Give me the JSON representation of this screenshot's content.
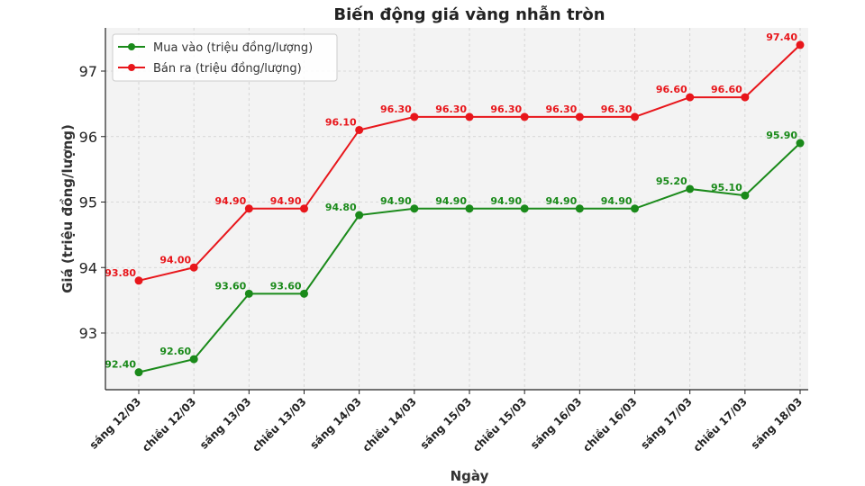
{
  "chart_data": {
    "type": "line",
    "title": "Biến động giá vàng nhẫn tròn",
    "xlabel": "Ngày",
    "ylabel": "Giá (triệu đồng/lượng)",
    "categories": [
      "sáng 12/03",
      "chiều 12/03",
      "sáng 13/03",
      "chiều 13/03",
      "sáng 14/03",
      "chiều 14/03",
      "sáng 15/03",
      "chiều 15/03",
      "sáng 16/03",
      "chiều 16/03",
      "sáng 17/03",
      "chiều 17/03",
      "sáng 18/03"
    ],
    "series": [
      {
        "name": "Mua vào (triệu đồng/lượng)",
        "color": "#1a8a1a",
        "values": [
          92.4,
          92.6,
          93.6,
          93.6,
          94.8,
          94.9,
          94.9,
          94.9,
          94.9,
          94.9,
          95.2,
          95.1,
          95.9
        ]
      },
      {
        "name": "Bán ra (triệu đồng/lượng)",
        "color": "#e8161b",
        "values": [
          93.8,
          94.0,
          94.9,
          94.9,
          96.1,
          96.3,
          96.3,
          96.3,
          96.3,
          96.3,
          96.6,
          96.6,
          97.4
        ]
      }
    ],
    "yticks": [
      93,
      94,
      95,
      96,
      97
    ],
    "ylim": [
      92.1,
      97.66
    ],
    "grid": true,
    "legend_position": "upper left",
    "data_labels": true
  },
  "colors": {
    "plot_bg": "#f3f3f3",
    "grid": "#cfcfcf",
    "axis": "#222222"
  }
}
